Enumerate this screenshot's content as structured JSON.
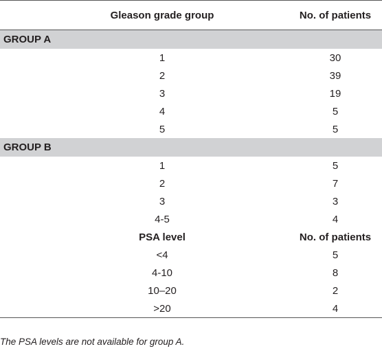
{
  "table": {
    "header": {
      "col1": "Gleason grade group",
      "col2": "No. of patients"
    },
    "group_a": {
      "label": "GROUP A",
      "rows": [
        {
          "grade": "1",
          "patients": "30"
        },
        {
          "grade": "2",
          "patients": "39"
        },
        {
          "grade": "3",
          "patients": "19"
        },
        {
          "grade": "4",
          "patients": "5"
        },
        {
          "grade": "5",
          "patients": "5"
        }
      ]
    },
    "group_b": {
      "label": "GROUP B",
      "rows": [
        {
          "grade": "1",
          "patients": "5"
        },
        {
          "grade": "2",
          "patients": "7"
        },
        {
          "grade": "3",
          "patients": "3"
        },
        {
          "grade": "4-5",
          "patients": "4"
        }
      ],
      "psa_header": {
        "col1": "PSA level",
        "col2": "No. of patients"
      },
      "psa_rows": [
        {
          "level": "<4",
          "patients": "5"
        },
        {
          "level": "4-10",
          "patients": "8"
        },
        {
          "level": "10–20",
          "patients": "2"
        },
        {
          "level": ">20",
          "patients": "4"
        }
      ]
    }
  },
  "footnote": "The PSA levels are not available for group A."
}
